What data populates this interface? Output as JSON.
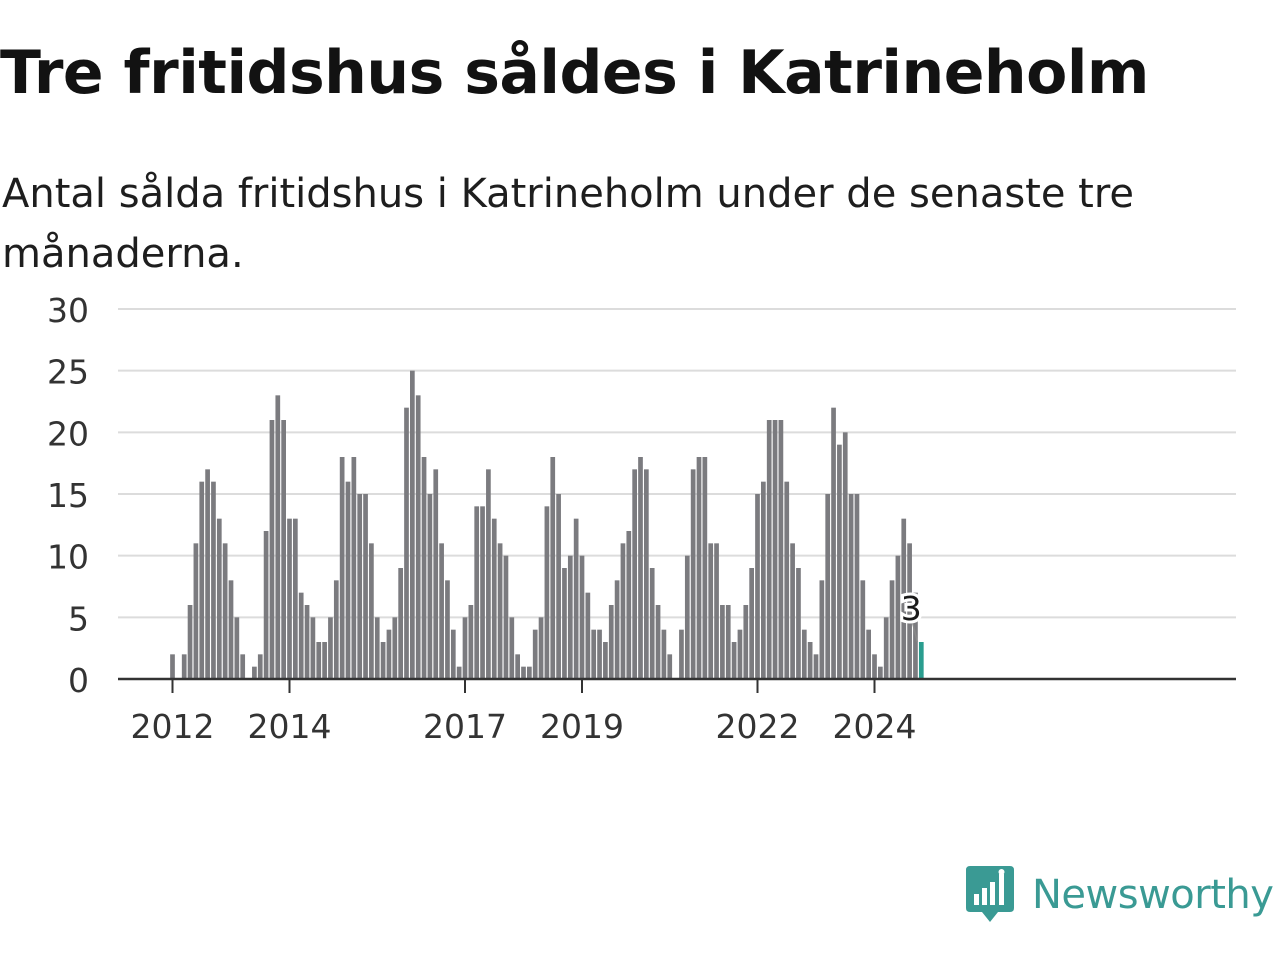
{
  "title": "Tre fritidshus såldes i Katrineholm",
  "subtitle": "Antal sålda fritidshus i Katrineholm under de senaste tre månaderna.",
  "brand": {
    "name": "Newsworthy",
    "icon": "newsworthy-chart-icon",
    "color": "#3a9a94"
  },
  "chart_data": {
    "type": "bar",
    "title": "Tre fritidshus såldes i Katrineholm",
    "subtitle": "Antal sålda fritidshus i Katrineholm under de senaste tre månaderna.",
    "xlabel": "",
    "ylabel": "",
    "ylim": [
      0,
      30
    ],
    "yticks": [
      0,
      5,
      10,
      15,
      20,
      25,
      30
    ],
    "xtick_labels": [
      "2012",
      "2014",
      "2017",
      "2019",
      "2022",
      "2024"
    ],
    "xtick_positions": [
      9,
      29,
      59,
      79,
      109,
      129
    ],
    "grid": true,
    "bar_color": "#7b7b7f",
    "highlight_color": "#2a9d8f",
    "highlight_index": 137,
    "annotation": {
      "text": "3",
      "index": 137
    },
    "values": [
      0,
      0,
      0,
      0,
      0,
      0,
      0,
      0,
      0,
      2,
      0,
      2,
      6,
      11,
      16,
      17,
      16,
      13,
      11,
      8,
      5,
      2,
      0,
      1,
      2,
      12,
      21,
      23,
      21,
      13,
      13,
      7,
      6,
      5,
      3,
      3,
      5,
      8,
      18,
      16,
      18,
      15,
      15,
      11,
      5,
      3,
      4,
      5,
      9,
      22,
      25,
      23,
      18,
      15,
      17,
      11,
      8,
      4,
      1,
      5,
      6,
      14,
      14,
      17,
      13,
      11,
      10,
      5,
      2,
      1,
      1,
      4,
      5,
      14,
      18,
      15,
      9,
      10,
      13,
      10,
      7,
      4,
      4,
      3,
      6,
      8,
      11,
      12,
      17,
      18,
      17,
      9,
      6,
      4,
      2,
      0,
      4,
      10,
      17,
      18,
      18,
      11,
      11,
      6,
      6,
      3,
      4,
      6,
      9,
      15,
      16,
      21,
      21,
      21,
      16,
      11,
      9,
      4,
      3,
      2,
      8,
      15,
      22,
      19,
      20,
      15,
      15,
      8,
      4,
      2,
      1,
      5,
      8,
      10,
      13,
      11,
      7,
      3
    ]
  }
}
